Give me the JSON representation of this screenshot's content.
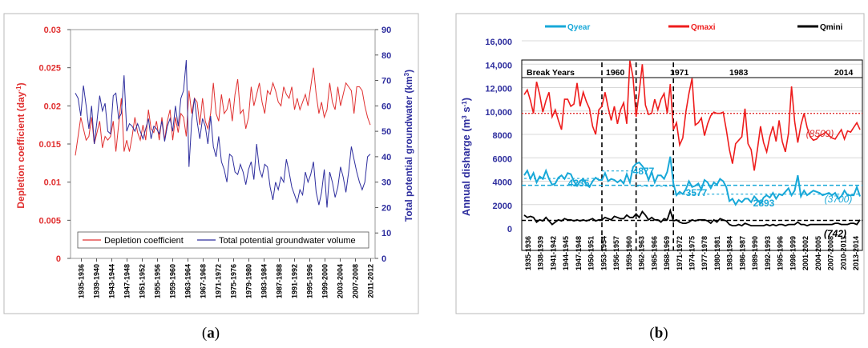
{
  "colors": {
    "red": "#e03030",
    "blue": "#2e2e9e",
    "cyan": "#18a8d8",
    "brightred": "#ee1c1c",
    "black": "#000000",
    "gray": "#d8d8d8"
  },
  "panel_a": {
    "subfig_open": "(",
    "subfig_letter": "a",
    "subfig_close": ")"
  },
  "panel_b": {
    "subfig_open": "(",
    "subfig_letter": "b",
    "subfig_close": ")"
  },
  "chart_data": [
    {
      "type": "line",
      "ylabel": "Depletion coefficient (day-1)",
      "ylabel_main": "Depletion coefficient (day",
      "ylabel_sup": "-1",
      "ylabel_close": ")",
      "y2label": "Total potential groundwater (km3)",
      "y2label_main": "Total potential groundwater (km",
      "y2label_sup": "3",
      "y2label_close": ")",
      "ylim": [
        0,
        0.03
      ],
      "yticks": [
        "0",
        "0.005",
        "0.01",
        "0.015",
        "0.02",
        "0.025",
        "0.03"
      ],
      "y2lim": [
        0,
        90
      ],
      "y2ticks": [
        "0",
        "10",
        "20",
        "30",
        "40",
        "50",
        "60",
        "70",
        "80",
        "90"
      ],
      "xticks": [
        "1935-1936",
        "1939-1940",
        "1943-1944",
        "1947-1948",
        "1951-1952",
        "1955-1956",
        "1959-1960",
        "1963-1964",
        "1967-1968",
        "1971-1972",
        "1975-1976",
        "1979-1980",
        "1983-1984",
        "1987-1988",
        "1991-1992",
        "1995-1996",
        "1999-2000",
        "2003-2004",
        "2007-2008",
        "2011-2012"
      ],
      "legend_position": "bottom",
      "grid": false,
      "series": [
        {
          "name": "Depletion coefficient",
          "axis": "left",
          "values": [
            0.0135,
            0.016,
            0.0185,
            0.017,
            0.0155,
            0.016,
            0.0185,
            0.015,
            0.0165,
            0.018,
            0.0145,
            0.016,
            0.0155,
            0.016,
            0.018,
            0.014,
            0.0175,
            0.021,
            0.014,
            0.0155,
            0.014,
            0.016,
            0.0185,
            0.0165,
            0.0155,
            0.0175,
            0.0155,
            0.0195,
            0.017,
            0.0165,
            0.018,
            0.0155,
            0.0185,
            0.0155,
            0.018,
            0.0195,
            0.0155,
            0.0185,
            0.0165,
            0.019,
            0.0185,
            0.016,
            0.022,
            0.019,
            0.021,
            0.0205,
            0.0175,
            0.021,
            0.018,
            0.017,
            0.019,
            0.023,
            0.019,
            0.018,
            0.0215,
            0.019,
            0.0195,
            0.021,
            0.018,
            0.0215,
            0.0235,
            0.019,
            0.0195,
            0.017,
            0.0185,
            0.0225,
            0.02,
            0.0215,
            0.023,
            0.0205,
            0.019,
            0.022,
            0.0215,
            0.023,
            0.022,
            0.0205,
            0.02,
            0.0225,
            0.0215,
            0.021,
            0.0225,
            0.0195,
            0.021,
            0.0195,
            0.0205,
            0.0215,
            0.02,
            0.0225,
            0.025,
            0.0215,
            0.019,
            0.0205,
            0.0185,
            0.0195,
            0.023,
            0.0205,
            0.0195,
            0.0225,
            0.02,
            0.0215,
            0.023,
            0.0225,
            0.022,
            0.019,
            0.0225,
            0.0225,
            0.022,
            0.02,
            0.0185,
            0.0175
          ]
        },
        {
          "name": "Total potential groundwater volume",
          "axis": "right",
          "values": [
            65,
            63,
            56,
            68,
            60,
            51,
            60,
            45,
            54,
            64,
            58,
            61,
            50,
            49,
            64,
            65,
            55,
            57,
            72,
            50,
            53,
            52,
            50,
            53,
            50,
            47,
            51,
            55,
            47,
            52,
            51,
            49,
            54,
            46,
            52,
            55,
            50,
            60,
            52,
            63,
            66,
            78,
            36,
            54,
            63,
            54,
            47,
            55,
            52,
            45,
            56,
            44,
            40,
            48,
            38,
            35,
            30,
            41,
            40,
            34,
            33,
            37,
            34,
            29,
            35,
            38,
            31,
            45,
            35,
            32,
            37,
            36,
            28,
            23,
            30,
            27,
            32,
            30,
            39,
            34,
            28,
            25,
            22,
            27,
            25,
            34,
            30,
            33,
            38,
            26,
            21,
            26,
            35,
            20,
            34,
            30,
            24,
            28,
            36,
            32,
            26,
            34,
            44,
            39,
            34,
            30,
            27,
            30,
            40,
            41
          ]
        }
      ]
    },
    {
      "type": "line",
      "ylabel": "Annual disharge (m3 s-1)",
      "ylabel_main": "Annual disharge (m",
      "ylabel_sup1": "3",
      "ylabel_mid": " s",
      "ylabel_sup2": "-1",
      "ylabel_close": ")",
      "ylim": [
        0,
        16000
      ],
      "yticks": [
        "0",
        "2000",
        "4000",
        "6000",
        "8000",
        "10,000",
        "12,000",
        "14,000",
        "16,000"
      ],
      "xticks": [
        "1935-1936",
        "1938-1939",
        "1941-1942",
        "1944-1945",
        "1947-1948",
        "1950-1951",
        "1953-1954",
        "1956-1957",
        "1959-1960",
        "1962-1963",
        "1965-1966",
        "1968-1969",
        "1971-1972",
        "1974-1975",
        "1977-1978",
        "1980-1981",
        "1983-1984",
        "1986-1987",
        "1989-1990",
        "1992-1993",
        "1995-1996",
        "1998-1999",
        "2001-2002",
        "2004-2005",
        "2007-2008",
        "2010-2011",
        "2013-2014"
      ],
      "legend_position": "top",
      "grid": true,
      "break_years_label": "Break Years",
      "break_years": [
        "1960",
        "1971",
        "1983",
        "2014"
      ],
      "annotations": {
        "qmaxi_mean": "(8509)",
        "qyear_mean": "(3700)",
        "qmini_mean": "(742)",
        "seg1": "4235",
        "seg2": "4877",
        "seg3": "3577",
        "seg4": "2893"
      },
      "series": [
        {
          "name": "Qyear",
          "values": [
            4500,
            4900,
            4200,
            4700,
            3900,
            4400,
            4200,
            4900,
            4200,
            3700,
            3800,
            4300,
            4500,
            4200,
            4700,
            4600,
            4000,
            3600,
            4000,
            4200,
            3700,
            3500,
            4000,
            4300,
            4100,
            4100,
            4700,
            4000,
            4200,
            4100,
            3900,
            4100,
            3800,
            4600,
            3900,
            5200,
            5500,
            5600,
            5300,
            4900,
            4100,
            4800,
            3900,
            4500,
            4500,
            4200,
            4800,
            6100,
            3800,
            2800,
            3100,
            2900,
            3300,
            4000,
            3500,
            3600,
            3800,
            3300,
            4100,
            3900,
            3400,
            3900,
            3700,
            4200,
            4000,
            3500,
            2300,
            2500,
            2000,
            2400,
            2200,
            2500,
            2500,
            2200,
            2700,
            2400,
            2100,
            2600,
            2800,
            2600,
            3000,
            2500,
            2900,
            2800,
            3100,
            3400,
            2800,
            3200,
            4500,
            2700,
            3200,
            2800,
            3000,
            3200,
            3100,
            3000,
            2800,
            2900,
            3000,
            2800,
            3000,
            2500,
            2700,
            3200,
            2800,
            2800,
            2800,
            3500,
            2700
          ]
        },
        {
          "name": "Qmaxi",
          "values": [
            11400,
            11800,
            10900,
            9800,
            12500,
            11400,
            9900,
            10900,
            11600,
            9500,
            10100,
            9200,
            8400,
            11000,
            11000,
            10400,
            10600,
            12400,
            10400,
            11600,
            10800,
            10200,
            8700,
            8000,
            10100,
            10400,
            11600,
            10300,
            9200,
            10400,
            8900,
            10100,
            10700,
            8900,
            14300,
            12900,
            9500,
            11600,
            14000,
            10500,
            9700,
            9800,
            11000,
            10100,
            11000,
            11500,
            9800,
            12300,
            8400,
            9000,
            7100,
            7700,
            9900,
            11500,
            12800,
            8800,
            9000,
            9400,
            7900,
            8900,
            9600,
            9900,
            9800,
            9800,
            9900,
            8400,
            6700,
            5500,
            7200,
            7500,
            7800,
            10200,
            7200,
            6700,
            4900,
            6700,
            8700,
            7300,
            6500,
            7800,
            8700,
            7400,
            9200,
            7400,
            6500,
            8100,
            12100,
            9100,
            7300,
            8800,
            9800,
            8600,
            7800,
            7500,
            7600,
            7900,
            8000,
            8200,
            7900,
            7700,
            7600,
            8000,
            8400,
            7600,
            8300,
            8200,
            8600,
            9000,
            8400
          ]
        },
        {
          "name": "Qmini",
          "values": [
            1100,
            900,
            1000,
            900,
            500,
            700,
            600,
            900,
            600,
            300,
            500,
            700,
            600,
            800,
            700,
            700,
            600,
            700,
            600,
            700,
            600,
            700,
            800,
            600,
            700,
            700,
            900,
            800,
            700,
            1000,
            900,
            800,
            800,
            1100,
            900,
            900,
            1200,
            900,
            1400,
            1100,
            700,
            900,
            700,
            700,
            500,
            800,
            700,
            1500,
            600,
            700,
            500,
            400,
            400,
            500,
            700,
            600,
            700,
            700,
            700,
            600,
            400,
            700,
            500,
            800,
            700,
            600,
            300,
            200,
            200,
            300,
            200,
            400,
            300,
            200,
            200,
            200,
            200,
            200,
            300,
            200,
            300,
            200,
            300,
            300,
            200,
            300,
            300,
            300,
            500,
            300,
            300,
            200,
            300,
            300,
            300,
            300,
            300,
            300,
            300,
            300,
            400,
            400,
            300,
            300,
            300,
            400,
            400,
            300,
            700
          ]
        }
      ]
    }
  ]
}
